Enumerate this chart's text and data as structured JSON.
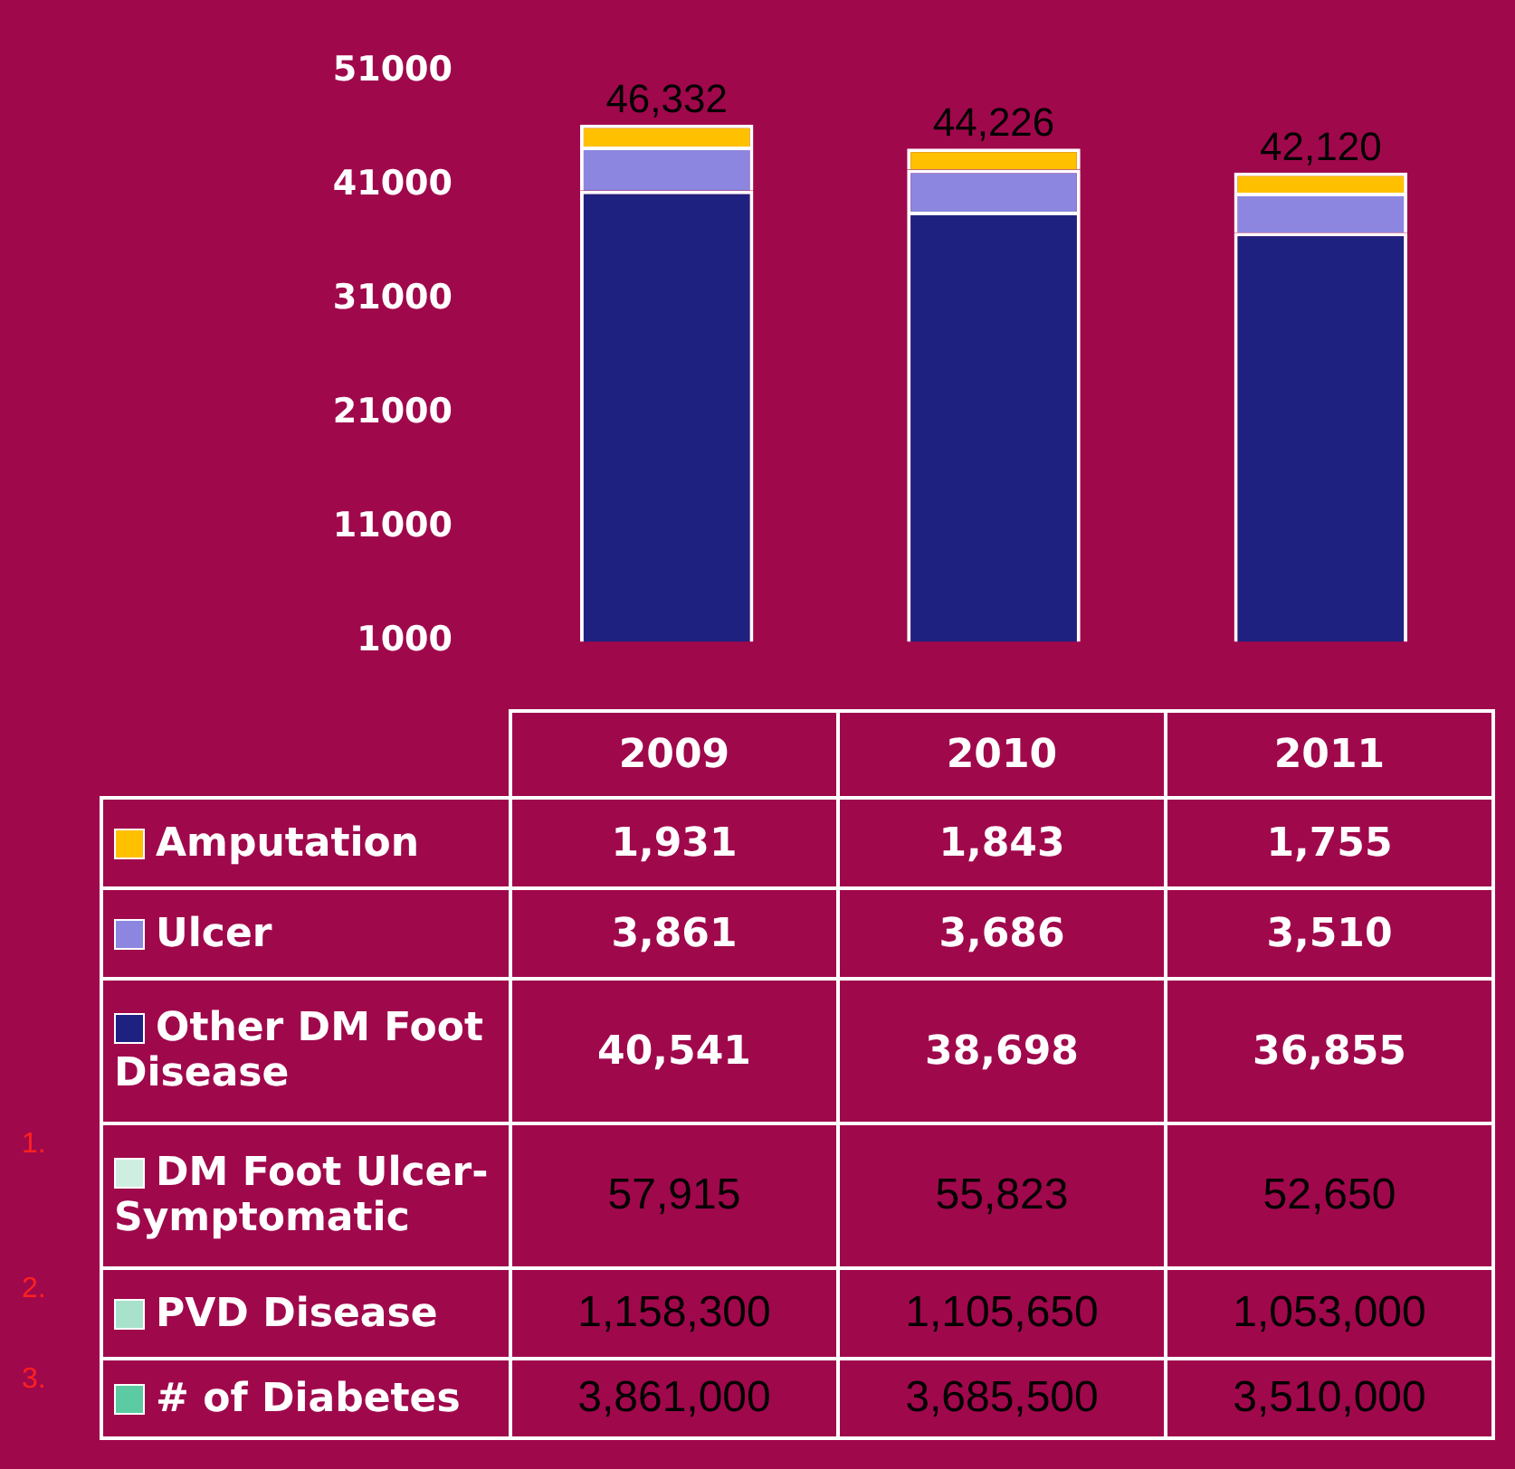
{
  "chart_data": {
    "type": "bar",
    "stacked": true,
    "categories": [
      "2009",
      "2010",
      "2011"
    ],
    "series": [
      {
        "name": "Other DM Foot Disease",
        "color": "#1f2180",
        "values": [
          40541,
          38698,
          36855
        ],
        "value_labels": [
          "40,541",
          "38,698",
          "36,855"
        ]
      },
      {
        "name": "Ulcer",
        "color": "#8c86e0",
        "values": [
          3861,
          3686,
          3510
        ],
        "value_labels": [
          "3,861",
          "3,686",
          "3,510"
        ]
      },
      {
        "name": "Amputation",
        "color": "#ffc000",
        "values": [
          1931,
          1843,
          1755
        ],
        "value_labels": [
          "1,931",
          "1,843",
          "1,755"
        ]
      }
    ],
    "ylim": [
      1000,
      51000
    ],
    "yticks": [
      1000,
      11000,
      21000,
      31000,
      41000,
      51000
    ],
    "grid": false,
    "legend": "bottom",
    "totals": [
      "46,332",
      "44,226",
      "42,120"
    ],
    "annotations": [
      "1.",
      "DM Foot Ulcer-Symptomatic",
      "57,915",
      "55,823",
      "52,650",
      "2.",
      "PVD Disease",
      "1,158,300",
      "1,105,650",
      "1,053,000",
      "3.",
      "# of Diabetes",
      "3,861,000",
      "3,685,500",
      "3,510,000"
    ]
  }
}
